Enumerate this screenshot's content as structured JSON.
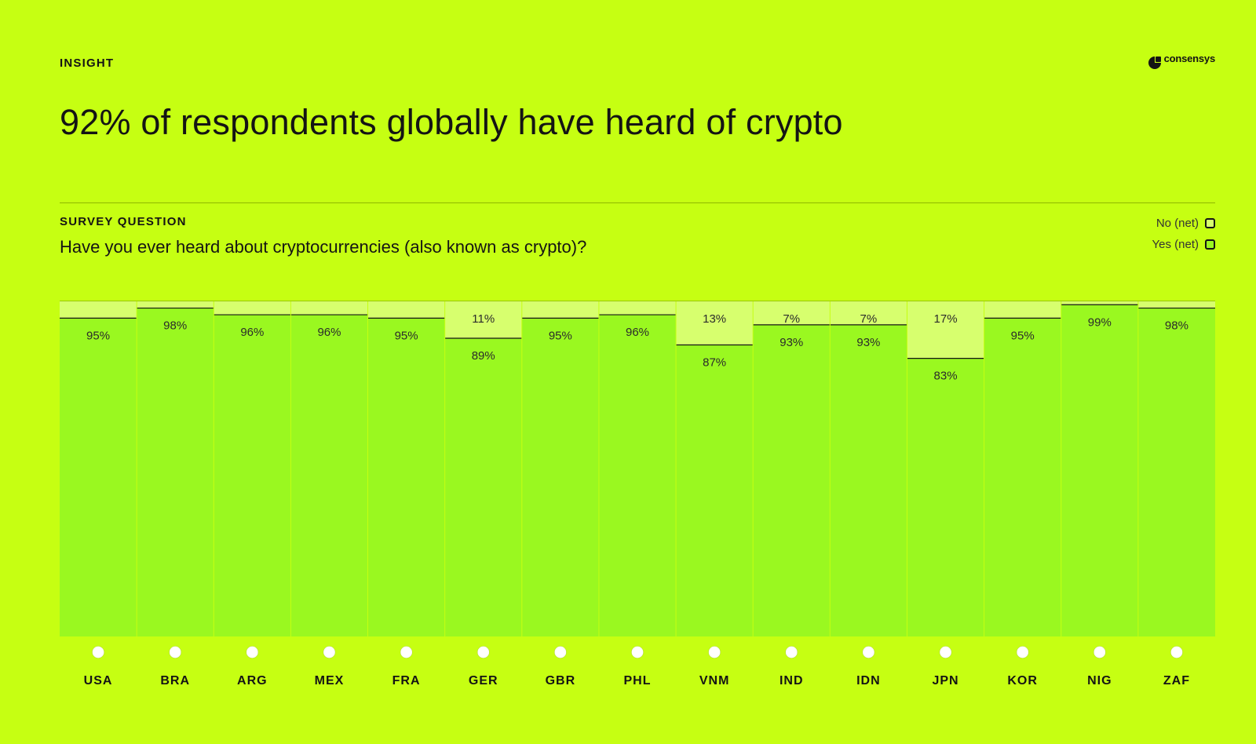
{
  "header": {
    "eyebrow": "INSIGHT",
    "brand": "consensys",
    "title": "92% of respondents globally have heard of crypto"
  },
  "survey": {
    "label": "SURVEY QUESTION",
    "question": "Have you ever heard about cryptocurrencies (also known as crypto)?"
  },
  "legend": {
    "no": "No (net)",
    "yes": "Yes (net)"
  },
  "colors": {
    "background": "#c6ff12",
    "yes": "#9af820",
    "no": "#d7ff6e",
    "separator": "#141414"
  },
  "chart_data": {
    "type": "bar",
    "stacked": true,
    "ylim": [
      0,
      100
    ],
    "categories": [
      "USA",
      "BRA",
      "ARG",
      "MEX",
      "FRA",
      "GER",
      "GBR",
      "PHL",
      "VNM",
      "IND",
      "IDN",
      "JPN",
      "KOR",
      "NIG",
      "ZAF"
    ],
    "series": [
      {
        "name": "Yes (net)",
        "values": [
          95,
          98,
          96,
          96,
          95,
          89,
          95,
          96,
          87,
          93,
          93,
          83,
          95,
          99,
          98
        ]
      },
      {
        "name": "No (net)",
        "values": [
          5,
          2,
          4,
          4,
          5,
          11,
          5,
          4,
          13,
          7,
          7,
          17,
          5,
          1,
          2
        ]
      }
    ],
    "yes_labels": [
      "95%",
      "98%",
      "96%",
      "96%",
      "95%",
      "89%",
      "95%",
      "96%",
      "87%",
      "93%",
      "93%",
      "83%",
      "95%",
      "99%",
      "98%"
    ],
    "no_labels": [
      "",
      "",
      "",
      "",
      "",
      "11%",
      "",
      "",
      "13%",
      "7%",
      "7%",
      "17%",
      "",
      "",
      ""
    ],
    "flag_icons": [
      "us-flag-icon",
      "brazil-flag-icon",
      "argentina-flag-icon",
      "mexico-flag-icon",
      "france-flag-icon",
      "germany-flag-icon",
      "uk-flag-icon",
      "philippines-flag-icon",
      "vietnam-flag-icon",
      "india-flag-icon",
      "indonesia-flag-icon",
      "japan-flag-icon",
      "south-korea-flag-icon",
      "nigeria-flag-icon",
      "south-africa-flag-icon"
    ]
  }
}
